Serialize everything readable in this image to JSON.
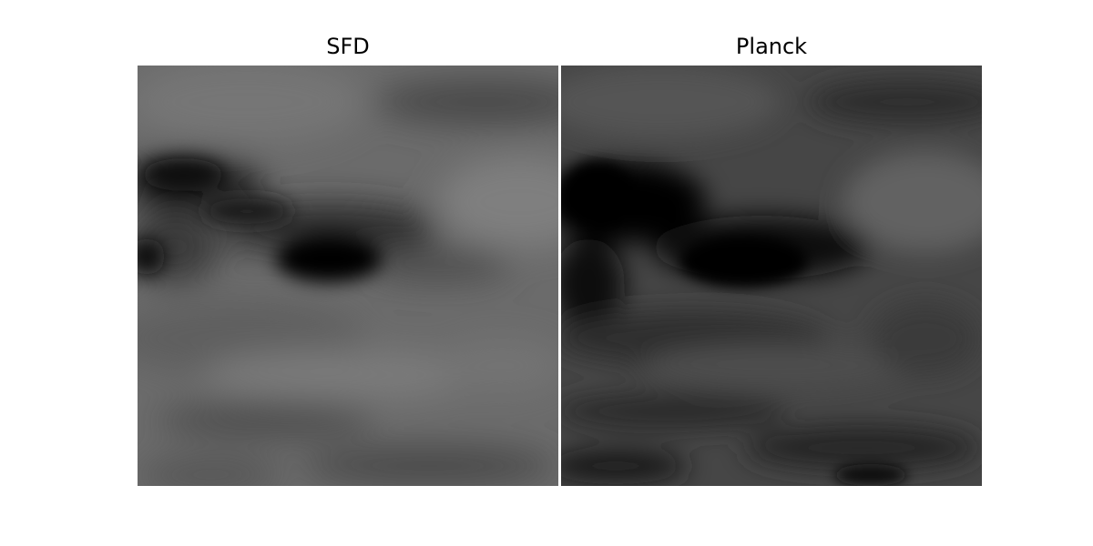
{
  "panels": [
    {
      "title": "SFD"
    },
    {
      "title": "Planck"
    }
  ],
  "colormap": "grayscale"
}
